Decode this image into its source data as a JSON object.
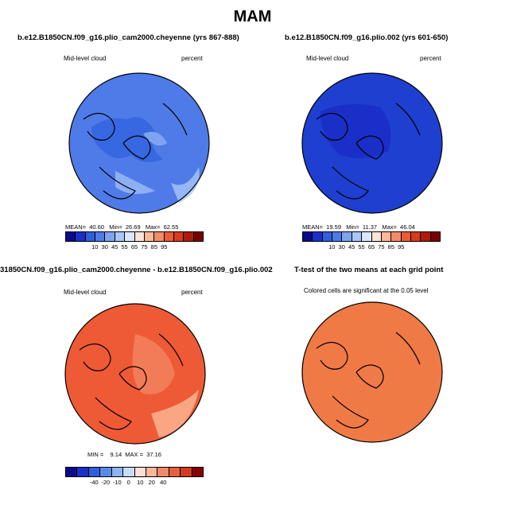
{
  "title": "MAM",
  "panels": {
    "tl": {
      "title": "b.e12.B1850CN.f09_g16.plio_cam2000.cheyenne (yrs 867-888)",
      "left_label": "Mid-level cloud",
      "right_label": "percent",
      "stats": "MEAN=  40.60   Min=  26.69   Max=  62.55",
      "ticks": [
        "10",
        "30",
        "45",
        "55",
        "65",
        "75",
        "85",
        "95"
      ],
      "fill": "#4f7be8"
    },
    "tr": {
      "title": "b.e12.B1850CN.f09_g16.plio.002 (yrs 601-650)",
      "left_label": "Mid-level cloud",
      "right_label": "percent",
      "stats": "MEAN=  19.59   Min=  11.37   Max=  46.04",
      "ticks": [
        "10",
        "30",
        "45",
        "55",
        "65",
        "75",
        "85",
        "95"
      ],
      "fill": "#1f3fd0"
    },
    "bl": {
      "title": "31850CN.f09_g16.plio_cam2000.cheyenne - b.e12.B1850CN.f09_g16.plio.002",
      "left_label": "Mid-level cloud",
      "right_label": "percent",
      "stats": "MIN =    9.14  MAX =  37.16",
      "ticks": [
        "-40",
        "-20",
        "-10",
        "0",
        "10",
        "20",
        "40"
      ],
      "fill": "#ee5a35"
    },
    "br": {
      "title": "T-test of the two means at each grid point",
      "subtitle": "Colored cells are significant at the 0.05 level",
      "fill": "#f07a45"
    }
  },
  "colorbars": {
    "abs_colors": [
      "#0a0a8c",
      "#1a2fc8",
      "#2f5fe0",
      "#4f7be8",
      "#7ea4f0",
      "#a8c6f8",
      "#d8e8ff",
      "#ffe4d8",
      "#fcb898",
      "#f58a68",
      "#ee5a35",
      "#d83a1c",
      "#b01a08",
      "#7a0000"
    ],
    "diff_colors": [
      "#0a0a8c",
      "#1a2fc8",
      "#2f5fe0",
      "#5a8ae8",
      "#8fb4f4",
      "#c6dcfc",
      "#fbe0d4",
      "#f8b898",
      "#f08a66",
      "#e6603c",
      "#d23a1c",
      "#8a0000"
    ]
  }
}
